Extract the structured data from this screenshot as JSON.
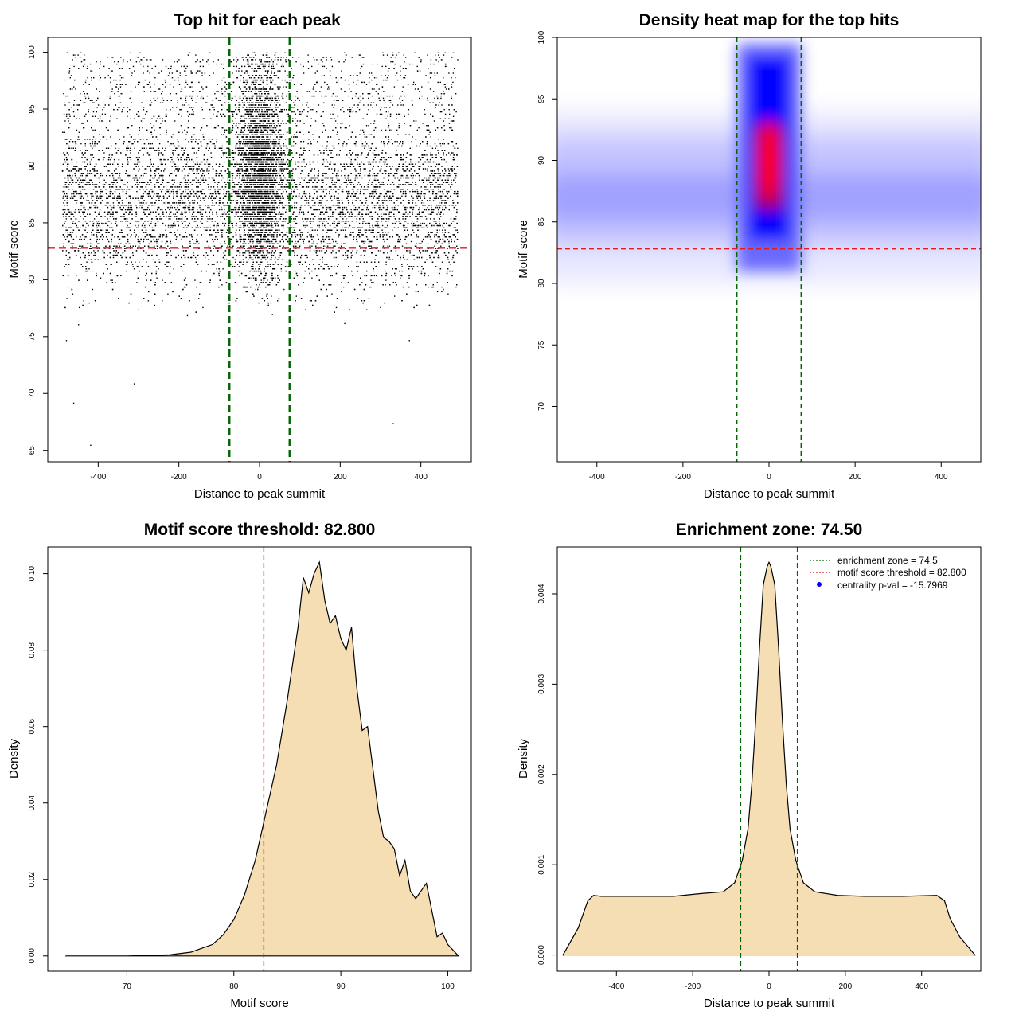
{
  "colors": {
    "points": "#000000",
    "enrichment_line": "#006400",
    "threshold_line": "#e41a1c",
    "density_fill": "#f5deb3",
    "heat_low": "#ffffff",
    "heat_mid": "#0000ff",
    "heat_high": "#ff0000",
    "pval_marker": "#0000ff"
  },
  "chart_data": [
    {
      "type": "scatter",
      "title": "Top hit for each peak",
      "xlabel": "Distance to peak summit",
      "ylabel": "Motif score",
      "xlim": [
        -525,
        525
      ],
      "ylim": [
        64,
        101.3
      ],
      "xticks": [
        -400,
        -200,
        0,
        200,
        400
      ],
      "yticks": [
        65,
        70,
        75,
        80,
        85,
        90,
        95,
        100
      ],
      "x_range_of_points": [
        -490,
        490
      ],
      "central_band": {
        "x": [
          -60,
          60
        ],
        "y_top": 100
      },
      "score_distribution_peak": 87,
      "outlier_points": [
        {
          "x": -480,
          "y": 74.7
        },
        {
          "x": -462,
          "y": 69.2
        },
        {
          "x": -420,
          "y": 65.5
        },
        {
          "x": -312,
          "y": 70.9
        },
        {
          "x": -450,
          "y": 76.1
        },
        {
          "x": 330,
          "y": 67.4
        },
        {
          "x": 370,
          "y": 74.7
        },
        {
          "x": 210,
          "y": 76.2
        },
        {
          "x": -180,
          "y": 76.9
        }
      ],
      "hlines": [
        {
          "y": 82.8,
          "color": "red",
          "style": "dashed"
        }
      ],
      "vlines": [
        {
          "x": -74.5,
          "color": "darkgreen",
          "style": "dashed"
        },
        {
          "x": 74.5,
          "color": "darkgreen",
          "style": "dashed"
        }
      ],
      "grid": false
    },
    {
      "type": "heatmap",
      "title": "Density heat map for the top hits",
      "xlabel": "Distance to peak summit",
      "ylabel": "Motif score",
      "xlim": [
        -492,
        492
      ],
      "ylim": [
        65.5,
        100
      ],
      "xticks": [
        -400,
        -200,
        0,
        200,
        400
      ],
      "yticks": [
        70,
        75,
        80,
        85,
        90,
        95,
        100
      ],
      "hotspot": {
        "x": 0,
        "y": 90
      },
      "hlines": [
        {
          "y": 82.8,
          "color": "red",
          "style": "dashed"
        }
      ],
      "vlines": [
        {
          "x": -74.5,
          "color": "darkgreen",
          "style": "dashed"
        },
        {
          "x": 74.5,
          "color": "darkgreen",
          "style": "dashed"
        }
      ],
      "grid": false
    },
    {
      "type": "area",
      "title": "Motif score threshold: 82.800",
      "xlabel": "Motif score",
      "ylabel": "Density",
      "xlim": [
        62.6,
        102.2
      ],
      "ylim": [
        -0.004,
        0.107
      ],
      "xticks": [
        70,
        80,
        90,
        100
      ],
      "yticks": [
        0.0,
        0.02,
        0.04,
        0.06,
        0.08,
        0.1
      ],
      "ytick_labels": [
        "0.00",
        "0.02",
        "0.04",
        "0.06",
        "0.08",
        "0.10"
      ],
      "x": [
        64.3,
        70,
        74,
        76,
        78,
        79,
        80,
        81,
        82,
        82.8,
        84,
        85,
        86,
        86.5,
        87,
        87.5,
        88,
        88.5,
        89,
        89.5,
        90,
        90.5,
        91,
        91.5,
        92,
        92.5,
        93,
        93.5,
        94,
        94.5,
        95,
        95.5,
        96,
        96.5,
        97,
        97.5,
        98,
        98.5,
        99,
        99.5,
        100,
        101
      ],
      "y": [
        0.0,
        0.0,
        0.0003,
        0.001,
        0.003,
        0.0055,
        0.0095,
        0.016,
        0.025,
        0.035,
        0.05,
        0.067,
        0.086,
        0.099,
        0.095,
        0.1,
        0.103,
        0.093,
        0.087,
        0.089,
        0.083,
        0.08,
        0.086,
        0.07,
        0.059,
        0.06,
        0.049,
        0.038,
        0.031,
        0.03,
        0.028,
        0.021,
        0.025,
        0.017,
        0.015,
        0.017,
        0.019,
        0.012,
        0.005,
        0.006,
        0.003,
        0.0
      ],
      "vlines": [
        {
          "x": 82.8,
          "color": "red",
          "style": "dashed"
        }
      ],
      "grid": false
    },
    {
      "type": "area",
      "title": "Enrichment zone: 74.50",
      "xlabel": "Distance to peak summit",
      "ylabel": "Density",
      "xlim": [
        -555,
        555
      ],
      "ylim": [
        -0.00018,
        0.00452
      ],
      "xticks": [
        -400,
        -200,
        0,
        200,
        400
      ],
      "yticks": [
        0.0,
        0.001,
        0.002,
        0.003,
        0.004
      ],
      "ytick_labels": [
        "0.000",
        "0.001",
        "0.002",
        "0.003",
        "0.004"
      ],
      "x": [
        -540,
        -500,
        -475,
        -460,
        -440,
        -350,
        -250,
        -180,
        -120,
        -90,
        -70,
        -55,
        -45,
        -35,
        -25,
        -15,
        -5,
        0,
        5,
        15,
        25,
        35,
        45,
        55,
        70,
        90,
        120,
        180,
        250,
        350,
        440,
        460,
        475,
        500,
        540
      ],
      "y": [
        0.0,
        0.0003,
        0.0006,
        0.00066,
        0.00065,
        0.00065,
        0.00065,
        0.00068,
        0.0007,
        0.0008,
        0.00105,
        0.0014,
        0.0019,
        0.0026,
        0.0034,
        0.0041,
        0.0043,
        0.00435,
        0.0043,
        0.0041,
        0.0034,
        0.0026,
        0.0019,
        0.0014,
        0.00105,
        0.0008,
        0.0007,
        0.00066,
        0.00065,
        0.00065,
        0.00066,
        0.0006,
        0.0004,
        0.0002,
        0.0
      ],
      "vlines": [
        {
          "x": -74.5,
          "color": "darkgreen",
          "style": "dashed"
        },
        {
          "x": 74.5,
          "color": "darkgreen",
          "style": "dashed"
        }
      ],
      "legend": {
        "position": "top-right",
        "entries": [
          {
            "label": "enrichment zone = 74.5",
            "color": "darkgreen",
            "kind": "dotted-line"
          },
          {
            "label": "motif score threshold = 82.800",
            "color": "red",
            "kind": "dotted-line"
          },
          {
            "label": "centrality p-val = -15.7969",
            "color": "blue",
            "kind": "point"
          }
        ]
      },
      "grid": false
    }
  ]
}
